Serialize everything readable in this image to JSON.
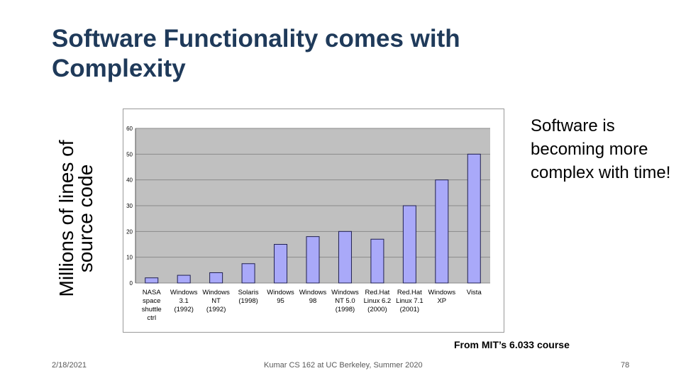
{
  "slide": {
    "title": "Software Functionality comes with Complexity",
    "side_note": "Software is becoming more complex with time!",
    "source_note": "From MIT’s 6.033 course",
    "footer": {
      "date": "2/18/2021",
      "course": "Kumar CS 162 at UC Berkeley, Summer 2020",
      "page": "78"
    }
  },
  "chart_data": {
    "type": "bar",
    "title": "",
    "xlabel": "",
    "ylabel_lines": [
      "Millions of lines of",
      "source code"
    ],
    "ylim": [
      0,
      60
    ],
    "yticks": [
      0,
      10,
      20,
      30,
      40,
      50,
      60
    ],
    "grid": true,
    "categories": [
      [
        "NASA",
        "space",
        "shuttle",
        "ctrl"
      ],
      [
        "Windows",
        "3.1",
        "(1992)"
      ],
      [
        "Windows",
        "NT",
        "(1992)"
      ],
      [
        "Solaris",
        "(1998)"
      ],
      [
        "Windows",
        "95"
      ],
      [
        "Windows",
        "98"
      ],
      [
        "Windows",
        "NT 5.0",
        "(1998)"
      ],
      [
        "Red.Hat",
        "Linux 6.2",
        "(2000)"
      ],
      [
        "Red.Hat",
        "Linux 7.1",
        "(2001)"
      ],
      [
        "Windows",
        "XP"
      ],
      [
        "Vista"
      ]
    ],
    "values": [
      2,
      3,
      4,
      7.5,
      15,
      18,
      20,
      17,
      30,
      40,
      50
    ],
    "colors": {
      "plot_bg": "#c0c0c0",
      "bar_fill": "#a9a9f9",
      "bar_stroke": "#202050",
      "frame_bg": "#ffffff"
    }
  }
}
